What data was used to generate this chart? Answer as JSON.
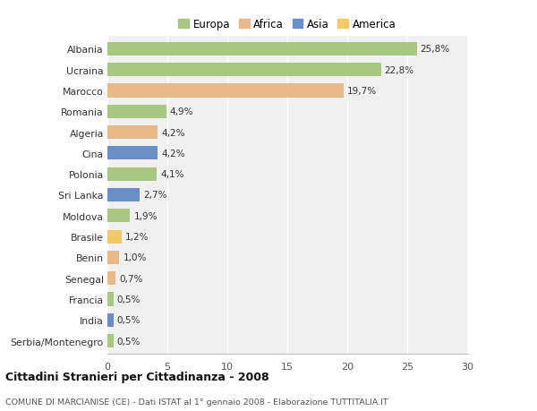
{
  "categories": [
    "Albania",
    "Ucraina",
    "Marocco",
    "Romania",
    "Algeria",
    "Cina",
    "Polonia",
    "Sri Lanka",
    "Moldova",
    "Brasile",
    "Benin",
    "Senegal",
    "Francia",
    "India",
    "Serbia/Montenegro"
  ],
  "values": [
    25.8,
    22.8,
    19.7,
    4.9,
    4.2,
    4.2,
    4.1,
    2.7,
    1.9,
    1.2,
    1.0,
    0.7,
    0.5,
    0.5,
    0.5
  ],
  "labels": [
    "25,8%",
    "22,8%",
    "19,7%",
    "4,9%",
    "4,2%",
    "4,2%",
    "4,1%",
    "2,7%",
    "1,9%",
    "1,2%",
    "1,0%",
    "0,7%",
    "0,5%",
    "0,5%",
    "0,5%"
  ],
  "colors": [
    "#a8c882",
    "#a8c882",
    "#e8b98a",
    "#a8c882",
    "#e8b98a",
    "#6b8ec7",
    "#a8c882",
    "#6b8ec7",
    "#a8c882",
    "#f0c96a",
    "#e8b98a",
    "#e8b98a",
    "#a8c882",
    "#6b8ec7",
    "#a8c882"
  ],
  "legend_labels": [
    "Europa",
    "Africa",
    "Asia",
    "America"
  ],
  "legend_colors": [
    "#a8c882",
    "#e8b98a",
    "#6b8ec7",
    "#f0c96a"
  ],
  "title": "Cittadini Stranieri per Cittadinanza - 2008",
  "subtitle": "COMUNE DI MARCIANISE (CE) - Dati ISTAT al 1° gennaio 2008 - Elaborazione TUTTITALIA.IT",
  "xlim": [
    0,
    30
  ],
  "xticks": [
    0,
    5,
    10,
    15,
    20,
    25,
    30
  ],
  "bg_color": "#ffffff",
  "plot_bg_color": "#f0f0f0",
  "grid_color": "#ffffff"
}
